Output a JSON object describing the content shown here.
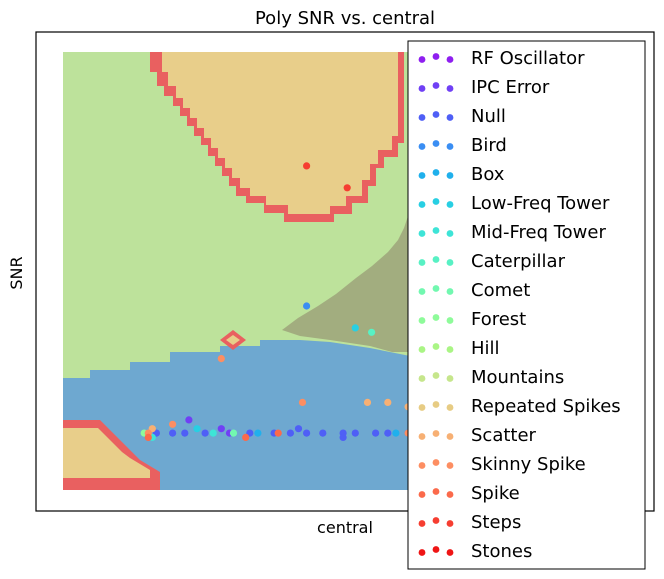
{
  "chart_data": {
    "type": "scatter",
    "title": "Poly SNR vs. central",
    "xlabel": "central",
    "ylabel": "SNR",
    "grid": false,
    "legend_placement": "right, overlapping plot",
    "decision_regions": {
      "description_colors": {
        "background": "#bde29b",
        "tan_region": "#e8ce8a",
        "olive_region": "#a2ad7f",
        "blue_region": "#6ea8d0",
        "red_edge": "#e96060"
      }
    },
    "series": [
      {
        "name": "RF Oscillator",
        "color": "#8f1ff0",
        "points": []
      },
      {
        "name": "IPC Error",
        "color": "#7040f5",
        "points": [
          [
            0.31,
            0.16
          ],
          [
            0.39,
            0.14
          ],
          [
            0.41,
            0.13
          ]
        ]
      },
      {
        "name": "Null",
        "color": "#4f5ff6",
        "points": [
          [
            0.3,
            0.13
          ],
          [
            0.35,
            0.13
          ],
          [
            0.46,
            0.13
          ],
          [
            0.52,
            0.13
          ],
          [
            0.56,
            0.13
          ],
          [
            0.6,
            0.13
          ],
          [
            0.64,
            0.13
          ],
          [
            0.69,
            0.13
          ],
          [
            0.72,
            0.13
          ],
          [
            0.77,
            0.13
          ],
          [
            0.8,
            0.13
          ],
          [
            0.85,
            0.13
          ],
          [
            0.88,
            0.13
          ],
          [
            0.23,
            0.13
          ],
          [
            0.27,
            0.13
          ],
          [
            0.58,
            0.14
          ],
          [
            0.69,
            0.12
          ]
        ]
      },
      {
        "name": "Bird",
        "color": "#3a8ef3",
        "points": [
          [
            0.6,
            0.42
          ],
          [
            0.98,
            0.88
          ]
        ]
      },
      {
        "name": "Box",
        "color": "#20b0ec",
        "points": [
          [
            0.48,
            0.13
          ],
          [
            0.82,
            0.13
          ],
          [
            0.97,
            0.83
          ]
        ]
      },
      {
        "name": "Low-Freq Tower",
        "color": "#28cfe3",
        "points": [
          [
            0.72,
            0.37
          ],
          [
            0.33,
            0.14
          ]
        ]
      },
      {
        "name": "Mid-Freq Tower",
        "color": "#3ee4d7",
        "points": [
          [
            0.37,
            0.13
          ],
          [
            0.89,
            0.13
          ],
          [
            0.22,
            0.12
          ]
        ]
      },
      {
        "name": "Caterpillar",
        "color": "#58f1c4",
        "points": [
          [
            0.76,
            0.36
          ],
          [
            0.88,
            0.55
          ]
        ]
      },
      {
        "name": "Comet",
        "color": "#72f8b0",
        "points": [
          [
            0.88,
            0.44
          ],
          [
            0.42,
            0.13
          ]
        ]
      },
      {
        "name": "Forest",
        "color": "#8efb9a",
        "points": [
          [
            0.2,
            0.13
          ],
          [
            0.91,
            0.13
          ]
        ]
      },
      {
        "name": "Hill",
        "color": "#aaf585",
        "points": [
          [
            0.89,
            0.31
          ],
          [
            0.93,
            0.26
          ]
        ]
      },
      {
        "name": "Mountains",
        "color": "#c6e68c",
        "points": [
          [
            0.93,
            0.2
          ]
        ]
      },
      {
        "name": "Repeated Spikes",
        "color": "#e7cc84",
        "points": [
          [
            0.9,
            0.22
          ],
          [
            0.94,
            0.21
          ]
        ]
      },
      {
        "name": "Scatter",
        "color": "#f7b074",
        "points": [
          [
            0.75,
            0.2
          ],
          [
            0.8,
            0.2
          ],
          [
            0.85,
            0.19
          ],
          [
            0.88,
            0.21
          ],
          [
            0.22,
            0.14
          ]
        ]
      },
      {
        "name": "Skinny Spike",
        "color": "#fd8e62",
        "points": [
          [
            0.21,
            0.13
          ],
          [
            0.39,
            0.3
          ],
          [
            0.27,
            0.15
          ],
          [
            0.59,
            0.2
          ],
          [
            0.85,
            0.13
          ]
        ]
      },
      {
        "name": "Spike",
        "color": "#fb6a4b",
        "points": [
          [
            0.53,
            0.13
          ],
          [
            0.45,
            0.12
          ],
          [
            0.21,
            0.12
          ],
          [
            0.88,
            0.15
          ]
        ]
      },
      {
        "name": "Steps",
        "color": "#f63e31",
        "points": [
          [
            0.7,
            0.69
          ],
          [
            0.6,
            0.74
          ]
        ]
      },
      {
        "name": "Stones",
        "color": "#ef1515",
        "points": [
          [
            0.88,
            0.14
          ],
          [
            0.89,
            0.11
          ]
        ]
      }
    ],
    "xlim": [
      0,
      1
    ],
    "ylim": [
      0,
      1
    ]
  }
}
